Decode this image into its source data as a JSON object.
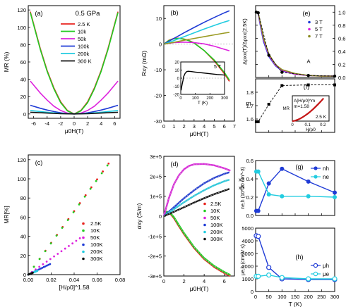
{
  "chart_data": [
    {
      "id": "a",
      "type": "line",
      "panel_label": "(a)",
      "annotation": "0.5 GPa",
      "xlabel": "μ0H(T)",
      "ylabel": "MR (%)",
      "xlim": [
        -6.8,
        6.8
      ],
      "ylim": [
        -5,
        125
      ],
      "xticks": [
        "-6",
        "-4",
        "-2",
        "0",
        "2",
        "4",
        "6"
      ],
      "yticks": [
        "0",
        "20",
        "40",
        "60",
        "80",
        "100",
        "120"
      ],
      "legend_position": "top-center",
      "series": [
        {
          "name": "2.5 K",
          "color": "#e8231e",
          "x": [
            -6.5,
            -5,
            -4,
            -3,
            -2,
            -1,
            0,
            1,
            2,
            3,
            4,
            5,
            6.5
          ],
          "y": [
            118,
            75,
            50,
            30,
            14,
            4,
            0,
            4,
            14,
            30,
            50,
            75,
            118
          ]
        },
        {
          "name": "10k",
          "color": "#22cc22",
          "x": [
            -6.5,
            -5,
            -4,
            -3,
            -2,
            -1,
            0,
            1,
            2,
            3,
            4,
            5,
            6.5
          ],
          "y": [
            117,
            74,
            49,
            29,
            13,
            3.5,
            0,
            3.5,
            13,
            29,
            49,
            74,
            117
          ]
        },
        {
          "name": "50k",
          "color": "#dd22dd",
          "x": [
            -6.5,
            -5,
            -4,
            -3,
            -2,
            -1,
            0,
            1,
            2,
            3,
            4,
            5,
            6.5
          ],
          "y": [
            38,
            24,
            16,
            9,
            4,
            1,
            0,
            1,
            4,
            9,
            16,
            24,
            38
          ]
        },
        {
          "name": "100k",
          "color": "#1f3bd6",
          "x": [
            -6.5,
            -5,
            -4,
            -3,
            -2,
            -1,
            0,
            1,
            2,
            3,
            4,
            5,
            6.5
          ],
          "y": [
            10,
            6.5,
            4.5,
            2.8,
            1.3,
            0.3,
            0,
            0.3,
            1.3,
            2.8,
            4.5,
            6.5,
            10
          ]
        },
        {
          "name": "200k",
          "color": "#22cce0",
          "x": [
            -6.5,
            -4,
            -2,
            0,
            2,
            4,
            6.5
          ],
          "y": [
            4,
            2,
            0.6,
            0,
            0.6,
            2,
            4
          ]
        },
        {
          "name": "300 K",
          "color": "#111111",
          "x": [
            -6.5,
            -4,
            -2,
            0,
            2,
            4,
            6.5
          ],
          "y": [
            2,
            1,
            0.3,
            0,
            0.3,
            1,
            2
          ]
        }
      ]
    },
    {
      "id": "b",
      "type": "line",
      "panel_label": "(b)",
      "xlabel": "μ0H(T)",
      "ylabel": "Rxy (mΩ)",
      "xlim": [
        0,
        7
      ],
      "ylim": [
        -30,
        15
      ],
      "xticks": [
        "0",
        "1",
        "2",
        "3",
        "4",
        "5",
        "6",
        "7"
      ],
      "yticks": [
        "-30",
        "-20",
        "-10",
        "0",
        "10"
      ],
      "series": [
        {
          "name": "2.5 K",
          "color": "#e8231e",
          "x": [
            0,
            0.5,
            1,
            1.5,
            2,
            2.5,
            3,
            4,
            5,
            6,
            6.5
          ],
          "y": [
            0,
            1.5,
            2.2,
            2.3,
            2,
            1.4,
            0.5,
            -2.5,
            -6.5,
            -11.5,
            -14.5
          ]
        },
        {
          "name": "10 K",
          "color": "#22cc22",
          "x": [
            0,
            0.5,
            1,
            1.5,
            2,
            2.5,
            3,
            4,
            5,
            6,
            6.5
          ],
          "y": [
            0,
            1.4,
            2.1,
            2.2,
            1.9,
            1.3,
            0.4,
            -2.5,
            -6.2,
            -11,
            -14
          ]
        },
        {
          "name": "50 K",
          "color": "#dd22dd",
          "x": [
            0,
            1,
            2,
            3,
            4,
            5,
            6,
            6.5
          ],
          "y": [
            0,
            0.6,
            0.8,
            0.6,
            0.1,
            -0.8,
            -2,
            -2.6
          ]
        },
        {
          "name": "100 K",
          "color": "#1f3bd6",
          "x": [
            0,
            1,
            2,
            3,
            4,
            5,
            6,
            6.5
          ],
          "y": [
            0,
            2.2,
            4.4,
            6.5,
            8.5,
            10.4,
            12.2,
            13
          ]
        },
        {
          "name": "200 K",
          "color": "#22cce0",
          "x": [
            0,
            1,
            2,
            3,
            4,
            5,
            6,
            6.5
          ],
          "y": [
            0,
            1.4,
            2.9,
            4.4,
            5.9,
            7.3,
            8.6,
            9.2
          ]
        },
        {
          "name": "300 K",
          "color": "#9a9a22",
          "x": [
            0,
            1,
            2,
            3,
            4,
            5,
            6,
            6.5
          ],
          "y": [
            0,
            0.7,
            1.5,
            2.2,
            2.9,
            3.6,
            4.3,
            4.6
          ]
        }
      ],
      "inset": {
        "label": "5 T",
        "xlabel": "T (K)",
        "xlim": [
          0,
          300
        ],
        "ylim": [
          -20,
          20
        ],
        "xticks": [
          "0",
          "100",
          "200",
          "300"
        ],
        "yticks": [
          "-20",
          "-10",
          "0",
          "10",
          "20"
        ],
        "x": [
          2.5,
          5,
          10,
          15,
          20,
          30,
          40,
          50,
          70,
          100,
          150,
          200,
          250,
          300
        ],
        "y": [
          -15,
          -12,
          -7,
          -3,
          2,
          6,
          8,
          8.5,
          8.2,
          7.5,
          6.5,
          5.5,
          4.5,
          3.8
        ]
      }
    },
    {
      "id": "c",
      "type": "scatter",
      "panel_label": "(c)",
      "xlabel": "[H/ρ0]^1.58",
      "ylabel": "MR[%]",
      "xlim": [
        0,
        0.08
      ],
      "ylim": [
        0,
        125
      ],
      "xticks": [
        "0.00",
        "0.02",
        "0.04",
        "0.06",
        "0.08"
      ],
      "yticks": [
        "0",
        "20",
        "40",
        "60",
        "80",
        "100",
        "120"
      ],
      "legend_position": "bottom-right",
      "series": [
        {
          "name": "2.5K",
          "color": "#e8231e",
          "x_max": 0.07,
          "y_max": 116
        },
        {
          "name": "10K",
          "color": "#22cc22",
          "x_max": 0.069,
          "y_max": 114
        },
        {
          "name": "50K",
          "color": "#dd22dd",
          "x_max": 0.045,
          "y_max": 38
        },
        {
          "name": "100K",
          "color": "#1f3bd6",
          "x_max": 0.019,
          "y_max": 11
        },
        {
          "name": "200K",
          "color": "#22cce0",
          "x_max": 0.008,
          "y_max": 4
        },
        {
          "name": "300K",
          "color": "#111111",
          "x_max": 0.004,
          "y_max": 2
        }
      ]
    },
    {
      "id": "d",
      "type": "line",
      "panel_label": "(d)",
      "xlabel": "μ0H(T)",
      "ylabel": "σxy (S/m)",
      "xlim": [
        0,
        7
      ],
      "ylim": [
        -300000,
        300000
      ],
      "xticks": [
        "0",
        "2",
        "4",
        "6"
      ],
      "yticks": [
        "3e+5",
        "2e+5",
        "1e+5",
        "0",
        "-1e+5",
        "-2e+5",
        "-3e+5"
      ],
      "legend_position": "right",
      "annotations": [
        "x2",
        "x5"
      ],
      "series": [
        {
          "name": "2.5K",
          "color": "#e8231e",
          "x": [
            0,
            0.3,
            0.6,
            1,
            1.5,
            2,
            3,
            4,
            5,
            6,
            6.6
          ],
          "y": [
            0,
            20000,
            15000,
            -10000,
            -50000,
            -90000,
            -160000,
            -215000,
            -255000,
            -285000,
            -300000
          ]
        },
        {
          "name": "10K",
          "color": "#22cc22",
          "x": [
            0,
            0.3,
            0.6,
            1,
            1.5,
            2,
            3,
            4,
            5,
            6,
            6.6
          ],
          "y": [
            0,
            22000,
            18000,
            -5000,
            -45000,
            -85000,
            -155000,
            -210000,
            -250000,
            -280000,
            -295000
          ]
        },
        {
          "name": "50K",
          "color": "#dd22dd",
          "x": [
            0,
            0.5,
            1,
            1.5,
            2,
            2.5,
            3,
            4,
            5,
            6,
            6.6
          ],
          "y": [
            0,
            90000,
            160000,
            205000,
            235000,
            252000,
            260000,
            262000,
            255000,
            240000,
            228000
          ]
        },
        {
          "name": "100K",
          "color": "#1f3bd6",
          "x": [
            0,
            1,
            2,
            3,
            4,
            5,
            6,
            6.5
          ],
          "y": [
            0,
            45000,
            90000,
            130000,
            165000,
            192000,
            212000,
            220000
          ]
        },
        {
          "name": "200K",
          "color": "#22cce0",
          "x": [
            0,
            1,
            2,
            3,
            4,
            5,
            6,
            6.5
          ],
          "y": [
            0,
            35000,
            70000,
            102000,
            130000,
            155000,
            175000,
            183000
          ]
        },
        {
          "name": "300K",
          "color": "#111111",
          "x": [
            0,
            1,
            2,
            3,
            4,
            5,
            6,
            6.5
          ],
          "y": [
            0,
            22000,
            45000,
            68000,
            90000,
            110000,
            128000,
            137000
          ]
        }
      ]
    },
    {
      "id": "e",
      "type": "line",
      "panel_label": "(e)",
      "xlabel": "",
      "ylabel": "Δρxx(T)/Δρxx(2.5K)",
      "xlim": [
        0,
        300
      ],
      "ylim": [
        0,
        1.1
      ],
      "xticks": [
        "0",
        "50",
        "100",
        "150",
        "200",
        "250",
        "300"
      ],
      "yticks": [
        "0.0",
        "0.2",
        "0.4",
        "0.6",
        "0.8",
        "1.0"
      ],
      "legend_position": "top-right",
      "annotation": "A",
      "series": [
        {
          "name": "3 T",
          "color": "#1f3bd6",
          "x": [
            2.5,
            10,
            20,
            30,
            50,
            75,
            100,
            150,
            200,
            250,
            300
          ],
          "y": [
            1,
            0.97,
            0.75,
            0.55,
            0.32,
            0.18,
            0.1,
            0.05,
            0.03,
            0.02,
            0.02
          ]
        },
        {
          "name": "5 T",
          "color": "#dd22dd",
          "x": [
            2.5,
            10,
            20,
            30,
            50,
            75,
            100,
            150,
            200,
            250,
            300
          ],
          "y": [
            1,
            0.98,
            0.78,
            0.58,
            0.34,
            0.19,
            0.11,
            0.05,
            0.03,
            0.02,
            0.02
          ]
        },
        {
          "name": "7 T",
          "color": "#8a8a22",
          "x": [
            2.5,
            10,
            20,
            30,
            50,
            75,
            100,
            150,
            200,
            250,
            300
          ],
          "y": [
            1,
            0.99,
            0.8,
            0.6,
            0.36,
            0.2,
            0.12,
            0.06,
            0.03,
            0.02,
            0.02
          ]
        },
        {
          "name": "",
          "color": "#111111",
          "x": [
            2.5,
            10,
            50,
            100,
            200,
            300
          ],
          "y": [
            1,
            0.99,
            0.34,
            0.08,
            0.03,
            0.02
          ],
          "dashed": true,
          "markers": true
        }
      ]
    },
    {
      "id": "f",
      "type": "line",
      "panel_label": "(f)",
      "xlabel": "",
      "ylabel": "m",
      "xlim": [
        0,
        300
      ],
      "ylim": [
        1.5,
        1.9
      ],
      "xticks": [
        "0",
        "50",
        "100",
        "150",
        "200",
        "250",
        "300"
      ],
      "yticks": [
        "1.6",
        "1.7",
        "1.8"
      ],
      "series": [
        {
          "name": "m",
          "color": "#111111",
          "x": [
            2.5,
            10,
            50,
            100,
            200,
            300
          ],
          "y": [
            1.58,
            1.58,
            1.71,
            1.85,
            1.855,
            1.855
          ],
          "dashed": true
        }
      ],
      "inset": {
        "label": "2.5 K",
        "formula": "A[H/ρ0]^m",
        "formula2": "m=1.58",
        "xlabel": "H/ρ0",
        "ylabel": "MR",
        "xticks": [
          "0",
          "0.1",
          "0.2"
        ]
      }
    },
    {
      "id": "g",
      "type": "line",
      "panel_label": "(g)",
      "xlabel": "",
      "ylabel": "ne,h (10^20 cm^-3)",
      "xlim": [
        0,
        300
      ],
      "ylim": [
        0,
        0.6
      ],
      "xticks": [
        "0",
        "50",
        "100",
        "150",
        "200",
        "250",
        "300"
      ],
      "yticks": [
        "0.0",
        "0.2",
        "0.4",
        "0.6"
      ],
      "legend_position": "top-right",
      "series": [
        {
          "name": "nh",
          "color": "#1f3bd6",
          "x": [
            2.5,
            10,
            50,
            100,
            200,
            300
          ],
          "y": [
            0.05,
            0.05,
            0.35,
            0.51,
            0.37,
            0.25
          ]
        },
        {
          "name": "ne",
          "color": "#22cce0",
          "x": [
            2.5,
            10,
            50,
            100,
            200,
            300
          ],
          "y": [
            0.48,
            0.48,
            0.23,
            0.21,
            0.21,
            0.2
          ]
        }
      ]
    },
    {
      "id": "h",
      "type": "line",
      "panel_label": "(h)",
      "xlabel": "T (K)",
      "ylabel": "μe,h (cm²/V s)",
      "xlim": [
        0,
        300
      ],
      "ylim": [
        0,
        5000
      ],
      "xticks": [
        "0",
        "50",
        "100",
        "150",
        "200",
        "250",
        "300"
      ],
      "yticks": [
        "0",
        "1000",
        "2000",
        "3000",
        "4000",
        "5000"
      ],
      "legend_position": "right",
      "series": [
        {
          "name": "μh",
          "color": "#1f3bd6",
          "x": [
            2.5,
            10,
            50,
            100,
            200,
            300
          ],
          "y": [
            4400,
            4350,
            1900,
            1000,
            950,
            950
          ]
        },
        {
          "name": "μe",
          "color": "#22cce0",
          "x": [
            2.5,
            10,
            50,
            100,
            200,
            300
          ],
          "y": [
            1200,
            1200,
            1300,
            1100,
            1000,
            1000
          ]
        }
      ]
    }
  ]
}
